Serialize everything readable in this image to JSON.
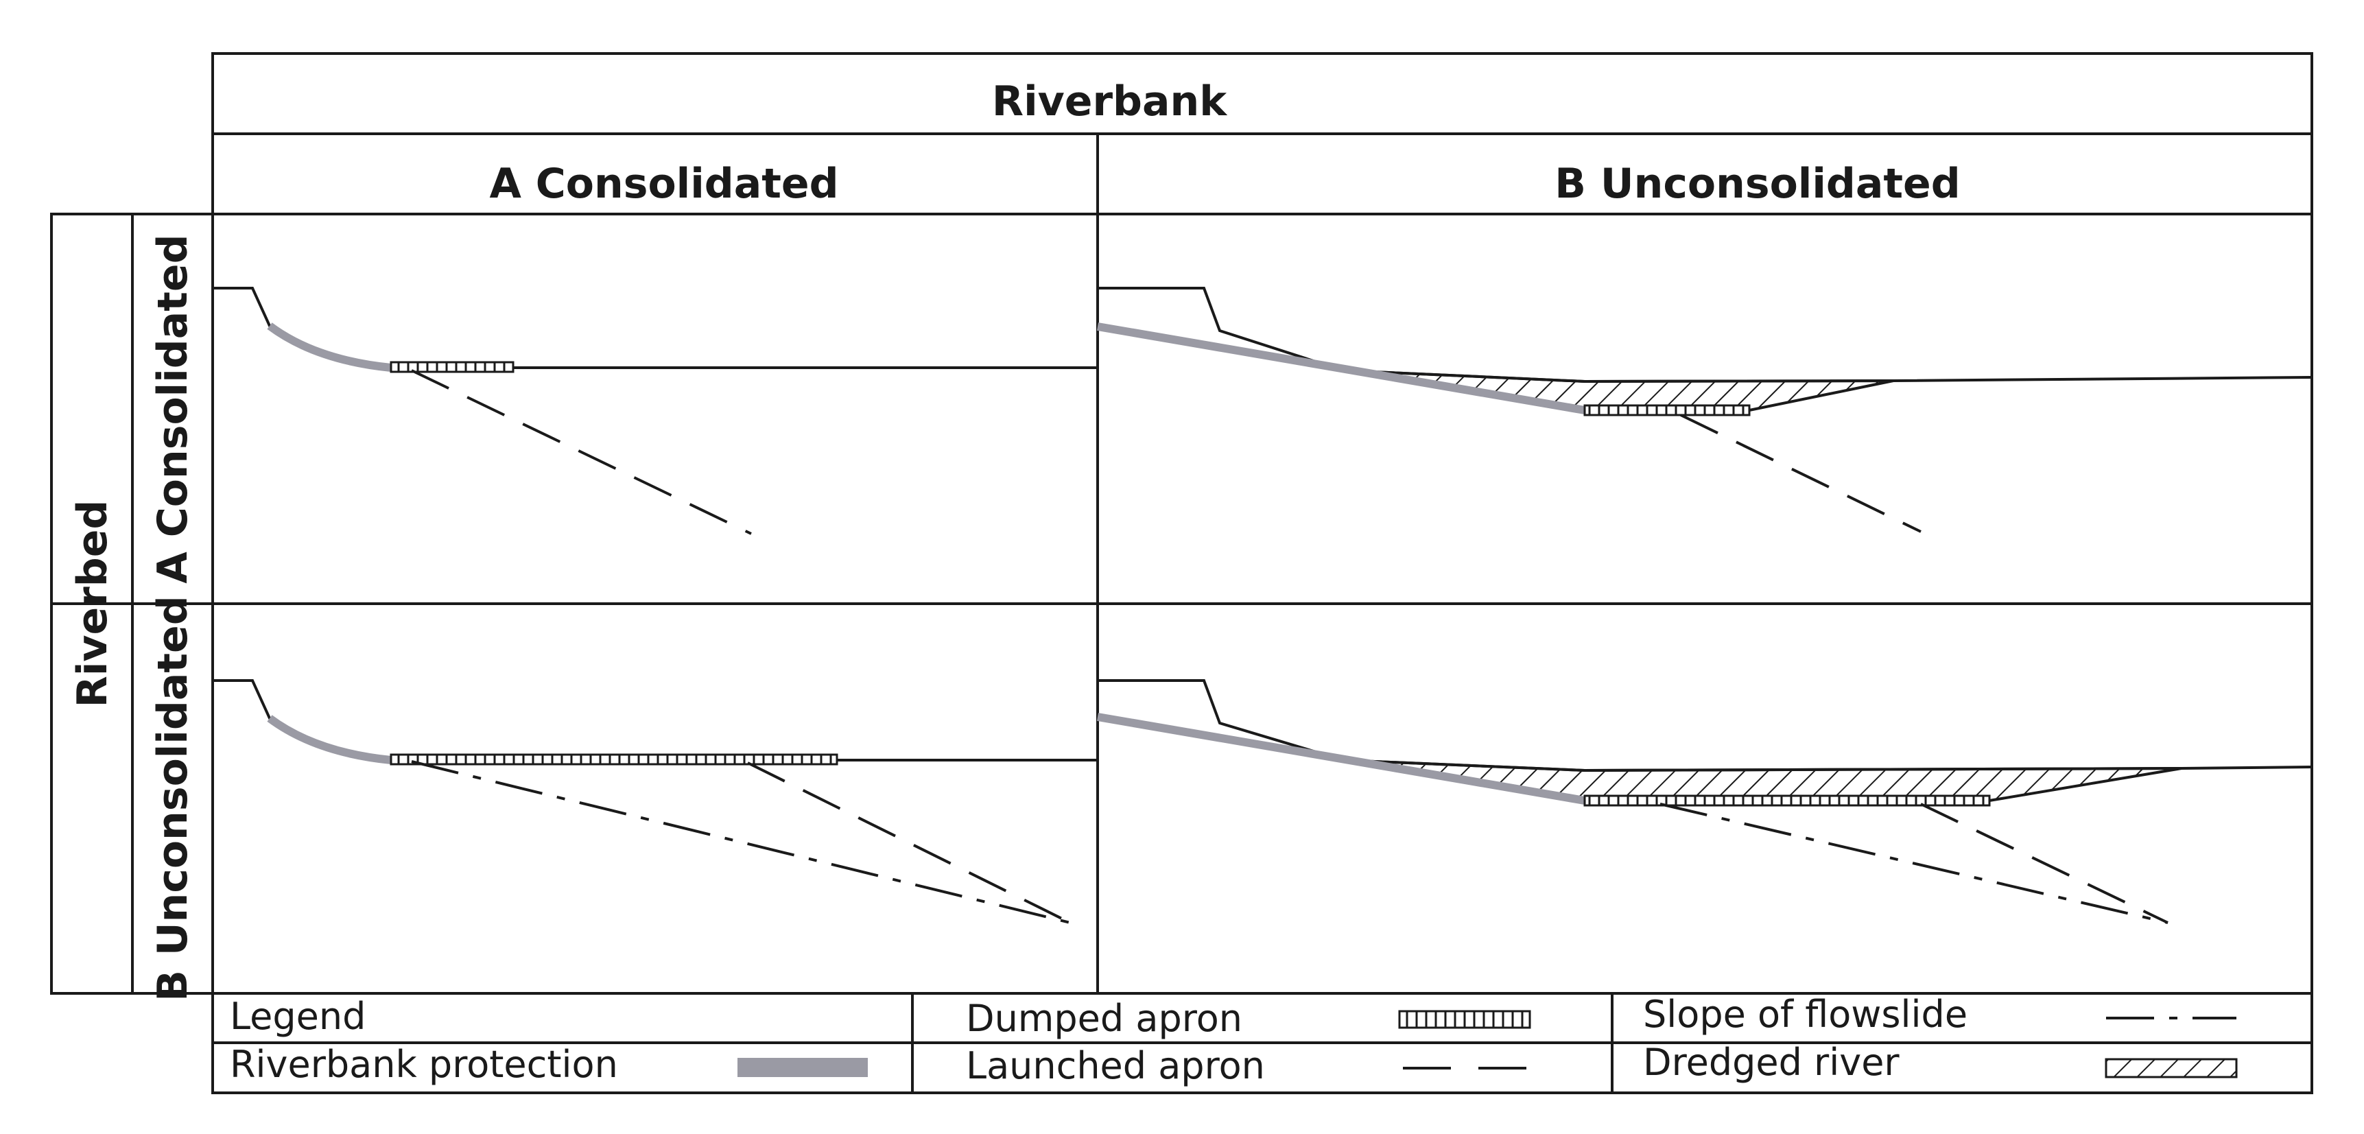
{
  "headers": {
    "column_group": "Riverbank",
    "column_a": "A Consolidated",
    "column_b": "B Unconsolidated",
    "row_group": "Riverbed",
    "row_a": "A Consolidated",
    "row_b": "B Unconsolidated"
  },
  "legend": {
    "title": "Legend",
    "riverbank_protection": "Riverbank protection",
    "dumped_apron": "Dumped apron",
    "launched_apron": "Launched apron",
    "slope_of_flowslide": "Slope of flowslide",
    "dredged_river": "Dredged river"
  },
  "colors": {
    "line": "#1a1a1a",
    "protection": "#9a9aa4",
    "background": "#ffffff"
  }
}
